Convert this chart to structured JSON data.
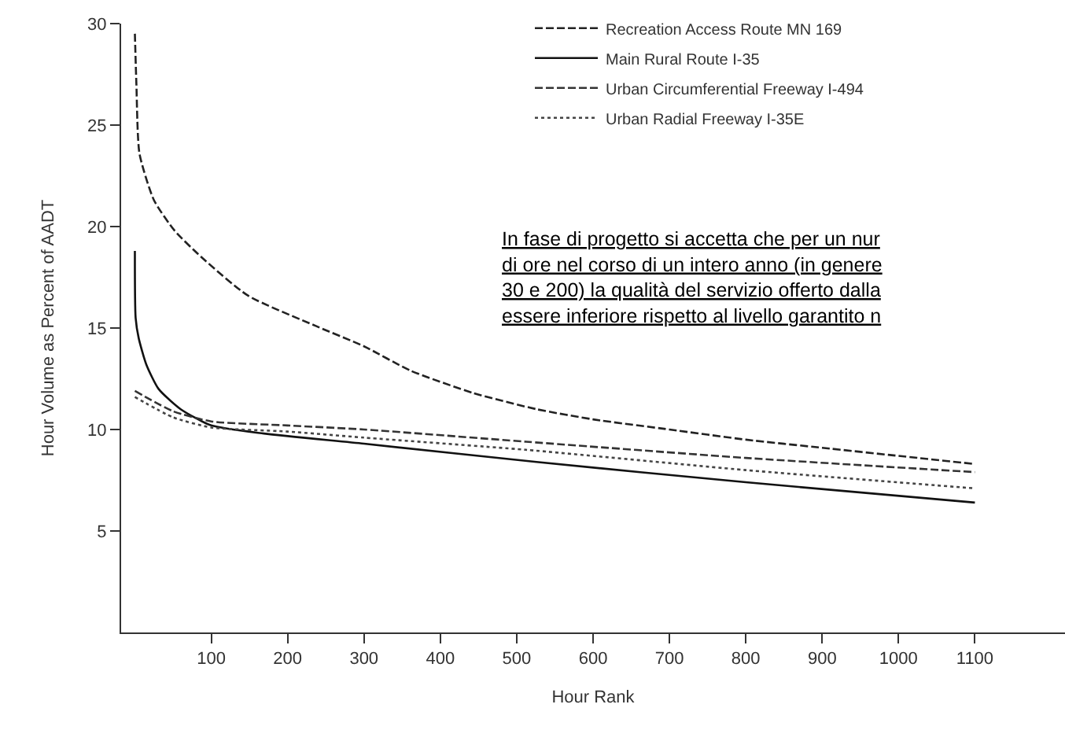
{
  "chart_data": {
    "type": "line",
    "xlabel": "Hour Rank",
    "ylabel": "Hour Volume as Percent of AADT",
    "xlim": [
      -18,
      1218
    ],
    "ylim": [
      0,
      30
    ],
    "xticks": [
      100,
      200,
      300,
      400,
      500,
      600,
      700,
      800,
      900,
      1000,
      1100
    ],
    "yticks": [
      5,
      10,
      15,
      20,
      25,
      30
    ],
    "legend": "top right",
    "marker": "none",
    "annotations": [
      "In fase di progetto si accetta che per un nur\ndi ore nel corso di un intero anno (in genere\n30 e 200) la qualità del servizio offerto dalla\nessere inferiore rispetto al livello garantito n"
    ],
    "series": [
      {
        "name": "Recreation Access Route MN 169",
        "color": "#222222",
        "line_style": "dashed",
        "x": [
          0,
          2,
          6,
          25,
          52,
          87,
          148,
          237,
          300,
          361,
          443,
          526,
          600,
          700,
          800,
          900,
          1000,
          1100
        ],
        "values": [
          29.5,
          27.0,
          23.6,
          21.3,
          19.8,
          18.5,
          16.6,
          15.1,
          14.1,
          12.9,
          11.8,
          11.0,
          10.5,
          10.0,
          9.5,
          9.1,
          8.7,
          8.3
        ]
      },
      {
        "name": "Main Rural Route I-35",
        "color": "#111111",
        "line_style": "solid",
        "x": [
          0,
          1,
          5,
          15,
          31,
          60,
          100,
          169,
          300,
          526,
          800,
          1100
        ],
        "values": [
          18.8,
          15.5,
          14.5,
          13.2,
          12.0,
          11.0,
          10.2,
          9.8,
          9.3,
          8.4,
          7.4,
          6.4
        ]
      },
      {
        "name": "Urban Circumferential Freeway I-494",
        "color": "#333333",
        "line_style": "dashed",
        "x": [
          0,
          50,
          100,
          200,
          300,
          512,
          800,
          1100
        ],
        "values": [
          11.9,
          10.9,
          10.4,
          10.2,
          10.0,
          9.4,
          8.6,
          7.9
        ]
      },
      {
        "name": "Urban Radial Freeway I-35E",
        "color": "#444444",
        "line_style": "dotted",
        "x": [
          0,
          50,
          100,
          200,
          300,
          512,
          800,
          1100
        ],
        "values": [
          11.6,
          10.6,
          10.1,
          9.9,
          9.6,
          9.0,
          8.0,
          7.1
        ]
      }
    ]
  }
}
